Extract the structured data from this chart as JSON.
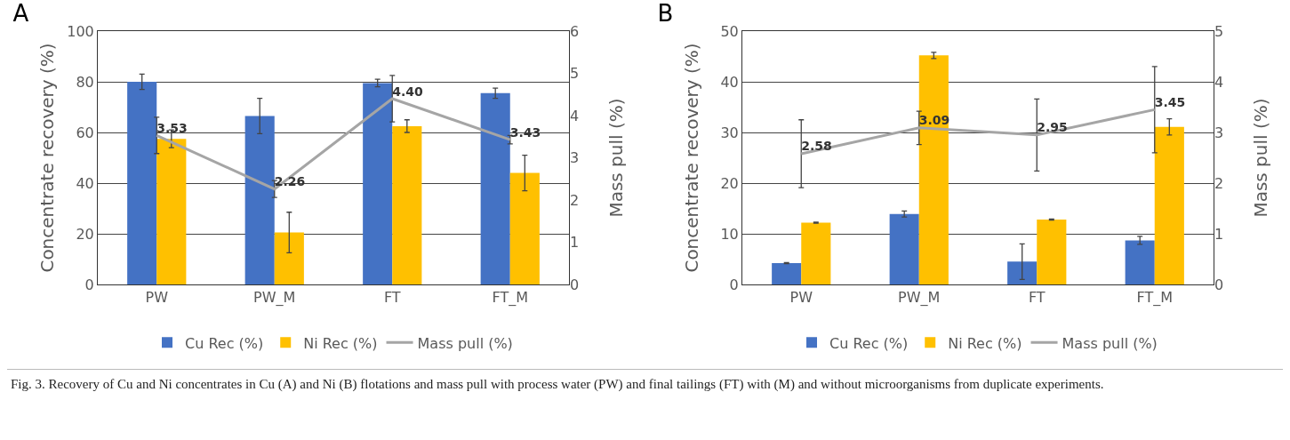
{
  "chart_data": [
    {
      "type": "bar",
      "title": "A",
      "categories": [
        "PW",
        "PW_M",
        "FT",
        "FT_M"
      ],
      "ylabel": "Concentrate recovery (%)",
      "y2label": "Mass pull (%)",
      "ylim": [
        0,
        100
      ],
      "yticks": [
        0,
        20,
        40,
        60,
        80,
        100
      ],
      "y2lim": [
        0,
        6
      ],
      "y2ticks": [
        0,
        1,
        2,
        3,
        4,
        5,
        6
      ],
      "grid": "y",
      "legend": "bottom",
      "series": [
        {
          "name": "Cu Rec (%)",
          "color": "#4472c4",
          "values": [
            80,
            66.5,
            79.5,
            75.5
          ],
          "errors": [
            3,
            7,
            1.5,
            2
          ]
        },
        {
          "name": "Ni Rec (%)",
          "color": "#ffc000",
          "values": [
            57.5,
            20.5,
            62.5,
            44
          ],
          "errors": [
            3.5,
            8,
            2.5,
            7
          ]
        },
        {
          "name": "Mass pull (%)",
          "type": "line",
          "axis": "y2",
          "color": "#a5a5a5",
          "values": [
            3.53,
            2.26,
            4.4,
            3.43
          ],
          "errors": [
            0.43,
            0.2,
            0.55,
            0.1
          ],
          "value_labels": [
            "3.53",
            "2.26",
            "4.40",
            "3.43"
          ]
        }
      ],
      "annotations": [
        "Fig. 3. Recovery of Cu and Ni concentrates in Cu (A) and Ni (B) flotations and mass pull with process water (PW) and final tailings (FT) with (M) and without microorganisms from duplicate experiments."
      ]
    },
    {
      "type": "bar",
      "title": "B",
      "categories": [
        "PW",
        "PW_M",
        "FT",
        "FT_M"
      ],
      "ylabel": "Concentrate recovery (%)",
      "y2label": "Mass pull (%)",
      "ylim": [
        0,
        50
      ],
      "yticks": [
        0,
        10,
        20,
        30,
        40,
        50
      ],
      "y2lim": [
        0,
        5
      ],
      "y2ticks": [
        0,
        1,
        2,
        3,
        4,
        5
      ],
      "grid": "y",
      "legend": "bottom",
      "series": [
        {
          "name": "Cu Rec (%)",
          "color": "#4472c4",
          "values": [
            4.2,
            13.9,
            4.5,
            8.7
          ],
          "errors": [
            0.1,
            0.6,
            3.5,
            0.8
          ]
        },
        {
          "name": "Ni Rec (%)",
          "color": "#ffc000",
          "values": [
            12.2,
            45.2,
            12.8,
            31.1
          ],
          "errors": [
            0.1,
            0.6,
            0.1,
            1.6
          ]
        },
        {
          "name": "Mass pull (%)",
          "type": "line",
          "axis": "y2",
          "color": "#a5a5a5",
          "values": [
            2.58,
            3.09,
            2.95,
            3.45
          ],
          "errors": [
            0.67,
            0.33,
            0.71,
            0.85
          ],
          "value_labels": [
            "2.58",
            "3.09",
            "2.95",
            "3.45"
          ]
        }
      ]
    }
  ]
}
